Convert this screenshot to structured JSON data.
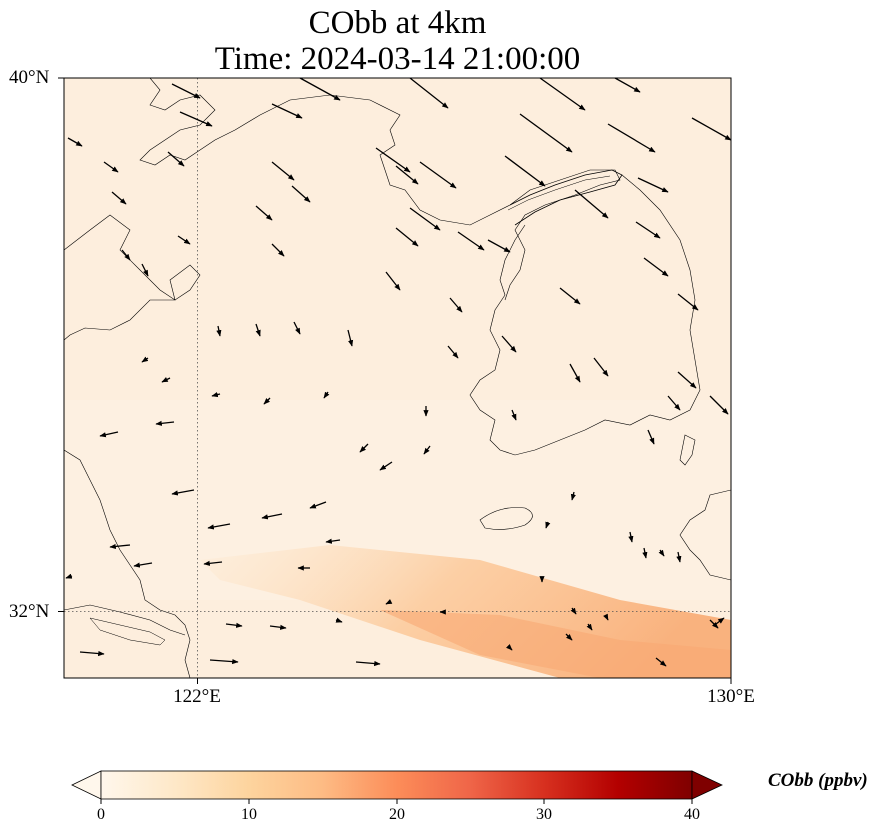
{
  "title": {
    "line1": "CObb at 4km",
    "line2": "Time: 2024-03-14 21:00:00"
  },
  "map": {
    "region": "Yellow Sea / Korean Peninsula",
    "lat_range": [
      31,
      40
    ],
    "lon_range": [
      120,
      130
    ],
    "projection": "PlateCarree",
    "lat_labels": [
      "40°N",
      "32°N"
    ],
    "lon_labels": [
      "122°E",
      "130°E"
    ],
    "gridlines": {
      "lat": 32,
      "lon": 122,
      "style": "dotted"
    },
    "features": [
      "coastlines",
      "country borders"
    ],
    "wind_vectors": "arrows pointing mostly southeastward in north, westward/eastward in south"
  },
  "colorbar": {
    "label": "CObb (ppbv)",
    "colormap": "OrRd",
    "ticks": [
      "0",
      "10",
      "20",
      "30",
      "40"
    ],
    "range": [
      0,
      40
    ],
    "extend": "both",
    "colors": [
      "#fff7ec",
      "#fee8c8",
      "#fdd49e",
      "#fdbb84",
      "#fc8d59",
      "#ef6548",
      "#d7301f",
      "#b30000",
      "#7f0000"
    ]
  },
  "plume": {
    "description": "elevated CObb band from southwest to southeast near 32°N",
    "max_value_approx": 16
  }
}
